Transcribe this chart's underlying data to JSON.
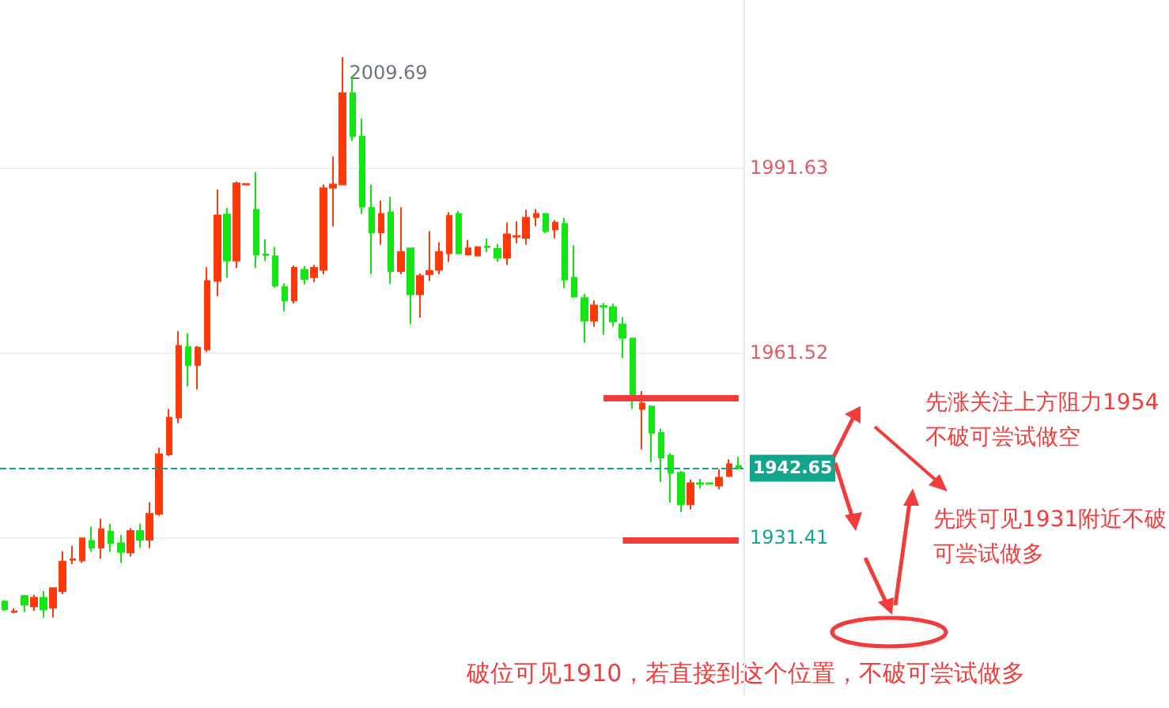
{
  "chart_data": {
    "type": "candlestick",
    "categories": [
      null,
      null,
      null,
      null,
      null,
      null,
      null,
      null,
      null,
      null,
      null,
      null,
      null,
      null,
      null,
      null,
      null,
      null,
      null,
      null,
      null,
      null,
      null,
      null,
      null,
      null,
      null,
      null,
      null,
      null,
      null,
      null,
      null,
      null,
      null,
      null,
      null,
      null,
      null,
      null,
      null,
      null,
      null,
      null,
      null,
      null,
      null,
      null,
      null,
      null,
      null,
      null,
      null,
      null,
      null,
      null,
      null,
      null,
      null,
      null,
      null,
      null,
      null,
      null,
      null,
      null,
      null,
      null,
      null,
      null,
      null,
      null,
      null,
      null,
      null,
      null,
      null
    ],
    "ohlc": [
      [
        1920.9,
        1921.1,
        1919.4,
        1919.6
      ],
      [
        1919.2,
        1919.8,
        1919.0,
        1919.3
      ],
      [
        1921.8,
        1922.0,
        1919.2,
        1920.4
      ],
      [
        1920.1,
        1922.0,
        1919.4,
        1921.5
      ],
      [
        1921.5,
        1922.6,
        1918.3,
        1919.6
      ],
      [
        1919.9,
        1923.2,
        1918.3,
        1923.1
      ],
      [
        1922.6,
        1929.1,
        1922.1,
        1927.4
      ],
      [
        1927.7,
        1930.0,
        1927.0,
        1927.8
      ],
      [
        1927.6,
        1931.3,
        1927.2,
        1931.2
      ],
      [
        1930.8,
        1933.1,
        1929.0,
        1929.7
      ],
      [
        1929.7,
        1934.4,
        1927.9,
        1932.7
      ],
      [
        1932.3,
        1933.6,
        1929.0,
        1930.4
      ],
      [
        1930.4,
        1931.8,
        1927.2,
        1929.0
      ],
      [
        1928.9,
        1932.9,
        1928.2,
        1932.4
      ],
      [
        1932.4,
        1933.6,
        1929.7,
        1931.0
      ],
      [
        1931.0,
        1937.1,
        1929.6,
        1935.2
      ],
      [
        1935.2,
        1946.0,
        1934.9,
        1944.9
      ],
      [
        1944.9,
        1952.3,
        1944.6,
        1950.9
      ],
      [
        1950.9,
        1965.0,
        1950.0,
        1962.6
      ],
      [
        1962.4,
        1964.7,
        1956.0,
        1959.5
      ],
      [
        1959.5,
        1962.6,
        1955.5,
        1962.3
      ],
      [
        1962.0,
        1975.4,
        1961.6,
        1973.2
      ],
      [
        1973.2,
        1988.1,
        1970.7,
        1983.9
      ],
      [
        1984.0,
        1985.1,
        1973.7,
        1976.5
      ],
      [
        1976.5,
        1989.4,
        1975.3,
        1989.1
      ],
      [
        1988.9,
        1989.1,
        1988.9,
        1989.0
      ],
      [
        1984.8,
        1990.9,
        1975.3,
        1977.5
      ],
      [
        1977.5,
        1980.0,
        1976.4,
        1977.4
      ],
      [
        1977.2,
        1978.7,
        1972.1,
        1972.4
      ],
      [
        1972.2,
        1972.8,
        1968.2,
        1970.0
      ],
      [
        1970.0,
        1975.7,
        1969.5,
        1975.3
      ],
      [
        1975.0,
        1975.6,
        1972.6,
        1973.5
      ],
      [
        1973.8,
        1975.8,
        1973.0,
        1975.3
      ],
      [
        1975.0,
        1988.9,
        1974.3,
        1988.3
      ],
      [
        1988.4,
        1993.5,
        1982.1,
        1988.9
      ],
      [
        1988.9,
        2009.69,
        1988.8,
        2003.8
      ],
      [
        2003.8,
        2006.6,
        1996.0,
        1996.8
      ],
      [
        1996.7,
        1999.7,
        1984.1,
        1985.3
      ],
      [
        1985.1,
        1988.9,
        1974.3,
        1981.1
      ],
      [
        1981.1,
        1986.3,
        1979.1,
        1984.1
      ],
      [
        1984.4,
        1986.9,
        1972.7,
        1974.8
      ],
      [
        1974.8,
        1985.2,
        1974.3,
        1977.9
      ],
      [
        1978.5,
        1978.6,
        1966.1,
        1971.0
      ],
      [
        1971.0,
        1974.4,
        1967.2,
        1974.0
      ],
      [
        1974.3,
        1981.3,
        1973.2,
        1974.8
      ],
      [
        1975.0,
        1979.5,
        1974.3,
        1977.9
      ],
      [
        1977.7,
        1984.4,
        1976.3,
        1983.8
      ],
      [
        1984.1,
        1984.6,
        1977.5,
        1977.7
      ],
      [
        1977.5,
        1979.9,
        1977.4,
        1978.5
      ],
      [
        1977.3,
        1978.8,
        1977.2,
        1978.7
      ],
      [
        1978.8,
        1980.1,
        1977.9,
        1978.7
      ],
      [
        1978.4,
        1979.2,
        1976.3,
        1977.0
      ],
      [
        1977.0,
        1982.7,
        1975.8,
        1980.8
      ],
      [
        1980.4,
        1982.9,
        1979.3,
        1980.5
      ],
      [
        1980.2,
        1984.8,
        1979.1,
        1983.5
      ],
      [
        1983.6,
        1984.9,
        1982.1,
        1984.1
      ],
      [
        1984.1,
        1984.2,
        1981.0,
        1981.3
      ],
      [
        1981.6,
        1983.1,
        1980.1,
        1982.7
      ],
      [
        1982.5,
        1983.5,
        1972.0,
        1973.4
      ],
      [
        1973.7,
        1979.0,
        1970.5,
        1970.6
      ],
      [
        1970.4,
        1971.1,
        1963.1,
        1966.7
      ],
      [
        1966.7,
        1970.0,
        1965.7,
        1969.2
      ],
      [
        1969.1,
        1969.6,
        1964.4,
        1969.0
      ],
      [
        1968.9,
        1969.5,
        1965.7,
        1966.6
      ],
      [
        1966.1,
        1967.3,
        1960.6,
        1963.9
      ],
      [
        1963.8,
        1963.9,
        1952.3,
        1954.0
      ],
      [
        1952.3,
        1955.2,
        1945.7,
        1953.2
      ],
      [
        1952.7,
        1952.9,
        1943.6,
        1948.4
      ],
      [
        1948.4,
        1949.1,
        1940.4,
        1944.4
      ],
      [
        1944.7,
        1945.1,
        1937.0,
        1941.9
      ],
      [
        1941.9,
        1942.2,
        1935.5,
        1936.8
      ],
      [
        1936.8,
        1940.8,
        1935.9,
        1940.2
      ],
      [
        1940.2,
        1940.9,
        1939.3,
        1940.1
      ],
      [
        1940.2,
        1940.2,
        1940.1,
        1940.1
      ],
      [
        1939.8,
        1942.5,
        1939.2,
        1941.1
      ],
      [
        1941.4,
        1944.1,
        1941.2,
        1943.3
      ],
      [
        1943.0,
        1944.5,
        1942.4,
        1942.65
      ]
    ],
    "colors": [
      "#14e614",
      "#ff3a0a",
      "#14e614",
      "#ff3a0a",
      "#14e614",
      "#ff3a0a",
      "#ff3a0a",
      "#ff3a0a",
      "#ff3a0a",
      "#14e614",
      "#ff3a0a",
      "#14e614",
      "#14e614",
      "#ff3a0a",
      "#14e614",
      "#ff3a0a",
      "#ff3a0a",
      "#ff3a0a",
      "#ff3a0a",
      "#14e614",
      "#ff3a0a",
      "#ff3a0a",
      "#ff3a0a",
      "#14e614",
      "#ff3a0a",
      "#ff3a0a",
      "#14e614",
      "#14e614",
      "#14e614",
      "#14e614",
      "#ff3a0a",
      "#14e614",
      "#ff3a0a",
      "#ff3a0a",
      "#ff3a0a",
      "#ff3a0a",
      "#14e614",
      "#14e614",
      "#14e614",
      "#ff3a0a",
      "#14e614",
      "#ff3a0a",
      "#14e614",
      "#ff3a0a",
      "#ff3a0a",
      "#ff3a0a",
      "#ff3a0a",
      "#14e614",
      "#ff3a0a",
      "#ff3a0a",
      "#14e614",
      "#14e614",
      "#ff3a0a",
      "#ff3a0a",
      "#ff3a0a",
      "#ff3a0a",
      "#14e614",
      "#ff3a0a",
      "#14e614",
      "#14e614",
      "#14e614",
      "#ff3a0a",
      "#14e614",
      "#14e614",
      "#14e614",
      "#14e614",
      "#ff3a0a",
      "#14e614",
      "#14e614",
      "#14e614",
      "#14e614",
      "#ff3a0a",
      "#14e614",
      "#14e614",
      "#ff3a0a",
      "#ff3a0a",
      "#14e614"
    ],
    "ylim": [
      1905.6,
      2019.0
    ],
    "yticks": [
      1931.41,
      1961.52,
      1991.63
    ],
    "grid": "y",
    "ref_lines": [
      {
        "axis": "y",
        "value": 1954,
        "color": "#f23c3c"
      },
      {
        "axis": "y",
        "value": 1931,
        "color": "#f23c3c"
      },
      {
        "axis": "y",
        "value": 1942.65,
        "label": "1942.65",
        "color": "#12a58c",
        "line_style": "dashed"
      }
    ],
    "annotations": [
      "2009.69",
      "先涨关注上方阻力1954不破可尝试做空",
      "先跌可见1931附近不破可尝试做多",
      "破位可见1910，若直接到这个位置，不破可尝试做多"
    ]
  }
}
